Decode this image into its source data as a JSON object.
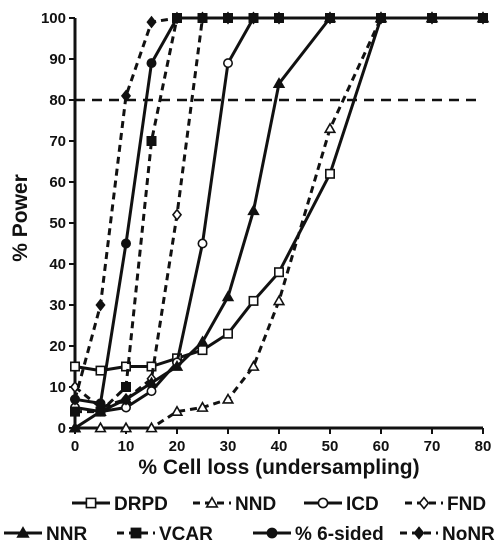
{
  "chart_data": {
    "type": "line",
    "xlabel": "% Cell loss (undersampling)",
    "ylabel": "% Power",
    "xlim": [
      0,
      80
    ],
    "ylim": [
      0,
      100
    ],
    "xticks": [
      0,
      10,
      20,
      30,
      40,
      50,
      60,
      70,
      80
    ],
    "yticks": [
      0,
      10,
      20,
      30,
      40,
      50,
      60,
      70,
      80,
      90,
      100
    ],
    "grid": false,
    "reference_line": {
      "y": 80,
      "style": "dashed"
    },
    "legend_position": "bottom",
    "series": [
      {
        "name": "DRPD",
        "style": "solid",
        "marker": "open-square",
        "x": [
          0,
          5,
          10,
          15,
          20,
          25,
          30,
          35,
          40,
          50,
          60,
          70,
          80
        ],
        "y": [
          15,
          14,
          15,
          15,
          17,
          19,
          23,
          31,
          38,
          62,
          100,
          100,
          100
        ]
      },
      {
        "name": "NND",
        "style": "dashed",
        "marker": "open-triangle",
        "x": [
          0,
          5,
          10,
          15,
          20,
          25,
          30,
          35,
          40,
          50,
          60,
          70,
          80
        ],
        "y": [
          0,
          0,
          0,
          0,
          4,
          5,
          7,
          15,
          31,
          73,
          100,
          100,
          100
        ]
      },
      {
        "name": "ICD",
        "style": "solid",
        "marker": "open-circle",
        "x": [
          0,
          5,
          10,
          15,
          20,
          25,
          30,
          35,
          40,
          50,
          60,
          70,
          80
        ],
        "y": [
          5,
          4,
          5,
          9,
          16,
          45,
          89,
          100,
          100,
          100,
          100,
          100,
          100
        ]
      },
      {
        "name": "FND",
        "style": "dashed",
        "marker": "open-diamond",
        "x": [
          0,
          5,
          10,
          15,
          20,
          25,
          30,
          35,
          40,
          50,
          60,
          70,
          80
        ],
        "y": [
          10,
          5,
          7,
          12,
          52,
          100,
          100,
          100,
          100,
          100,
          100,
          100,
          100
        ]
      },
      {
        "name": "NNR",
        "style": "solid",
        "marker": "filled-triangle",
        "x": [
          0,
          5,
          10,
          15,
          20,
          25,
          30,
          35,
          40,
          50,
          60,
          70,
          80
        ],
        "y": [
          0,
          4,
          7,
          11,
          15,
          21,
          32,
          53,
          84,
          100,
          100,
          100,
          100
        ]
      },
      {
        "name": "VCAR",
        "style": "dashed",
        "marker": "filled-square",
        "x": [
          0,
          5,
          10,
          15,
          20,
          25,
          30,
          35,
          40,
          50,
          60,
          70,
          80
        ],
        "y": [
          4,
          4,
          10,
          70,
          100,
          100,
          100,
          100,
          100,
          100,
          100,
          100,
          100
        ]
      },
      {
        "name": "% 6-sided",
        "style": "solid",
        "marker": "filled-circle",
        "x": [
          0,
          5,
          10,
          15,
          20,
          25,
          30,
          35,
          40,
          50,
          60,
          70,
          80
        ],
        "y": [
          7,
          6,
          45,
          89,
          100,
          100,
          100,
          100,
          100,
          100,
          100,
          100,
          100
        ]
      },
      {
        "name": "NoNR",
        "style": "dashed",
        "marker": "filled-diamond",
        "x": [
          0,
          5,
          10,
          15,
          20,
          25,
          30,
          35,
          40,
          50,
          60,
          70,
          80
        ],
        "y": [
          7,
          30,
          81,
          99,
          100,
          100,
          100,
          100,
          100,
          100,
          100,
          100,
          100
        ]
      }
    ]
  }
}
